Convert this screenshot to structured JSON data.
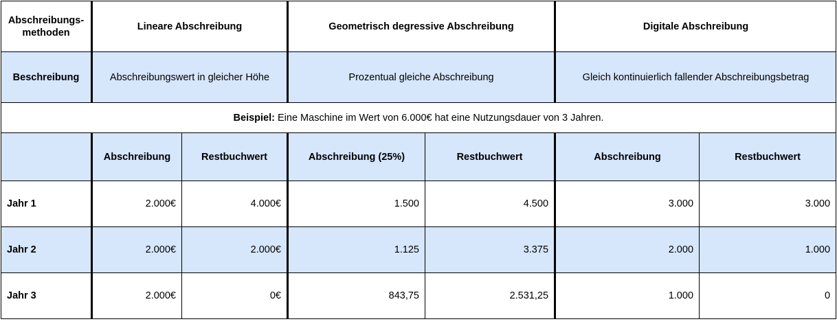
{
  "header": {
    "methods_label": "Abschreibungs-\nmethoden",
    "linear": "Lineare Abschreibung",
    "geometric": "Geometrisch degressive Abschreibung",
    "digital": "Digitale Abschreibung"
  },
  "description": {
    "label": "Beschreibung",
    "linear": "Abschreibungswert in gleicher Höhe",
    "geometric": "Prozentual gleiche Abschreibung",
    "digital": "Gleich kontinuierlich fallender Abschreibungsbetrag"
  },
  "example": {
    "label": "Beispiel:",
    "text": " Eine Maschine im Wert von 6.000€ hat eine Nutzungsdauer von 3 Jahren."
  },
  "subheaders": {
    "linear_abschreibung": "Abschreibung",
    "linear_restbuchwert": "Restbuchwert",
    "geometric_abschreibung": "Abschreibung (25%)",
    "geometric_restbuchwert": "Restbuchwert",
    "digital_abschreibung": "Abschreibung",
    "digital_restbuchwert": "Restbuchwert"
  },
  "rows": [
    {
      "label": "Jahr 1",
      "lin_ab": "2.000€",
      "lin_rb": "4.000€",
      "geo_ab": "1.500",
      "geo_rb": "4.500",
      "dig_ab": "3.000",
      "dig_rb": "3.000"
    },
    {
      "label": "Jahr 2",
      "lin_ab": "2.000€",
      "lin_rb": "2.000€",
      "geo_ab": "1.125",
      "geo_rb": "3.375",
      "dig_ab": "2.000",
      "dig_rb": "1.000"
    },
    {
      "label": "Jahr 3",
      "lin_ab": "2.000€",
      "lin_rb": "0€",
      "geo_ab": "843,75",
      "geo_rb": "2.531,25",
      "dig_ab": "1.000",
      "dig_rb": "0"
    }
  ]
}
